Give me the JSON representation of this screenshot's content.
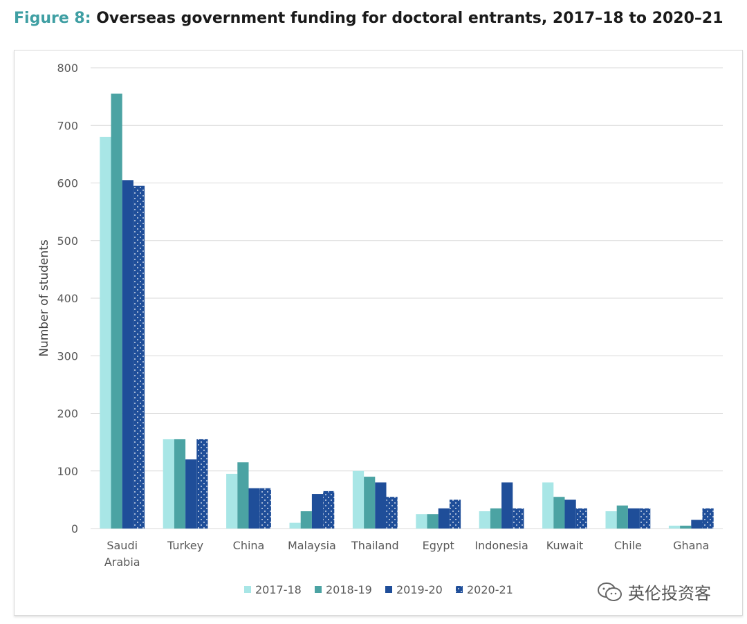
{
  "figure": {
    "label": "Figure 8:",
    "title": "Overseas government funding for doctoral entrants, 2017–18 to 2020–21"
  },
  "watermark": {
    "text": "英伦投资客",
    "icon": "wechat-icon"
  },
  "colors": {
    "series": [
      "#a8e6e6",
      "#4ba3a3",
      "#1f4e99",
      "#1f4e99"
    ],
    "grid": "#d9d9d9",
    "dots": "#ffffff"
  },
  "chart_data": {
    "type": "bar",
    "title": "Overseas government funding for doctoral entrants, 2017–18 to 2020–21",
    "xlabel": "",
    "ylabel": "Number of students",
    "ylim": [
      0,
      800
    ],
    "yticks": [
      0,
      100,
      200,
      300,
      400,
      500,
      600,
      700,
      800
    ],
    "grid": true,
    "legend_position": "bottom",
    "categories": [
      [
        "Saudi",
        "Arabia"
      ],
      [
        "Turkey"
      ],
      [
        "China"
      ],
      [
        "Malaysia"
      ],
      [
        "Thailand"
      ],
      [
        "Egypt"
      ],
      [
        "Indonesia"
      ],
      [
        "Kuwait"
      ],
      [
        "Chile"
      ],
      [
        "Ghana"
      ]
    ],
    "series": [
      {
        "name": "2017-18",
        "pattern": "solid",
        "values": [
          680,
          155,
          95,
          10,
          100,
          25,
          30,
          80,
          30,
          5
        ]
      },
      {
        "name": "2018-19",
        "pattern": "solid",
        "values": [
          755,
          155,
          115,
          30,
          90,
          25,
          35,
          55,
          40,
          5
        ]
      },
      {
        "name": "2019-20",
        "pattern": "solid",
        "values": [
          605,
          120,
          70,
          60,
          80,
          35,
          80,
          50,
          35,
          15
        ]
      },
      {
        "name": "2020-21",
        "pattern": "dotted",
        "values": [
          595,
          155,
          70,
          65,
          55,
          50,
          35,
          35,
          35,
          35
        ]
      }
    ]
  }
}
